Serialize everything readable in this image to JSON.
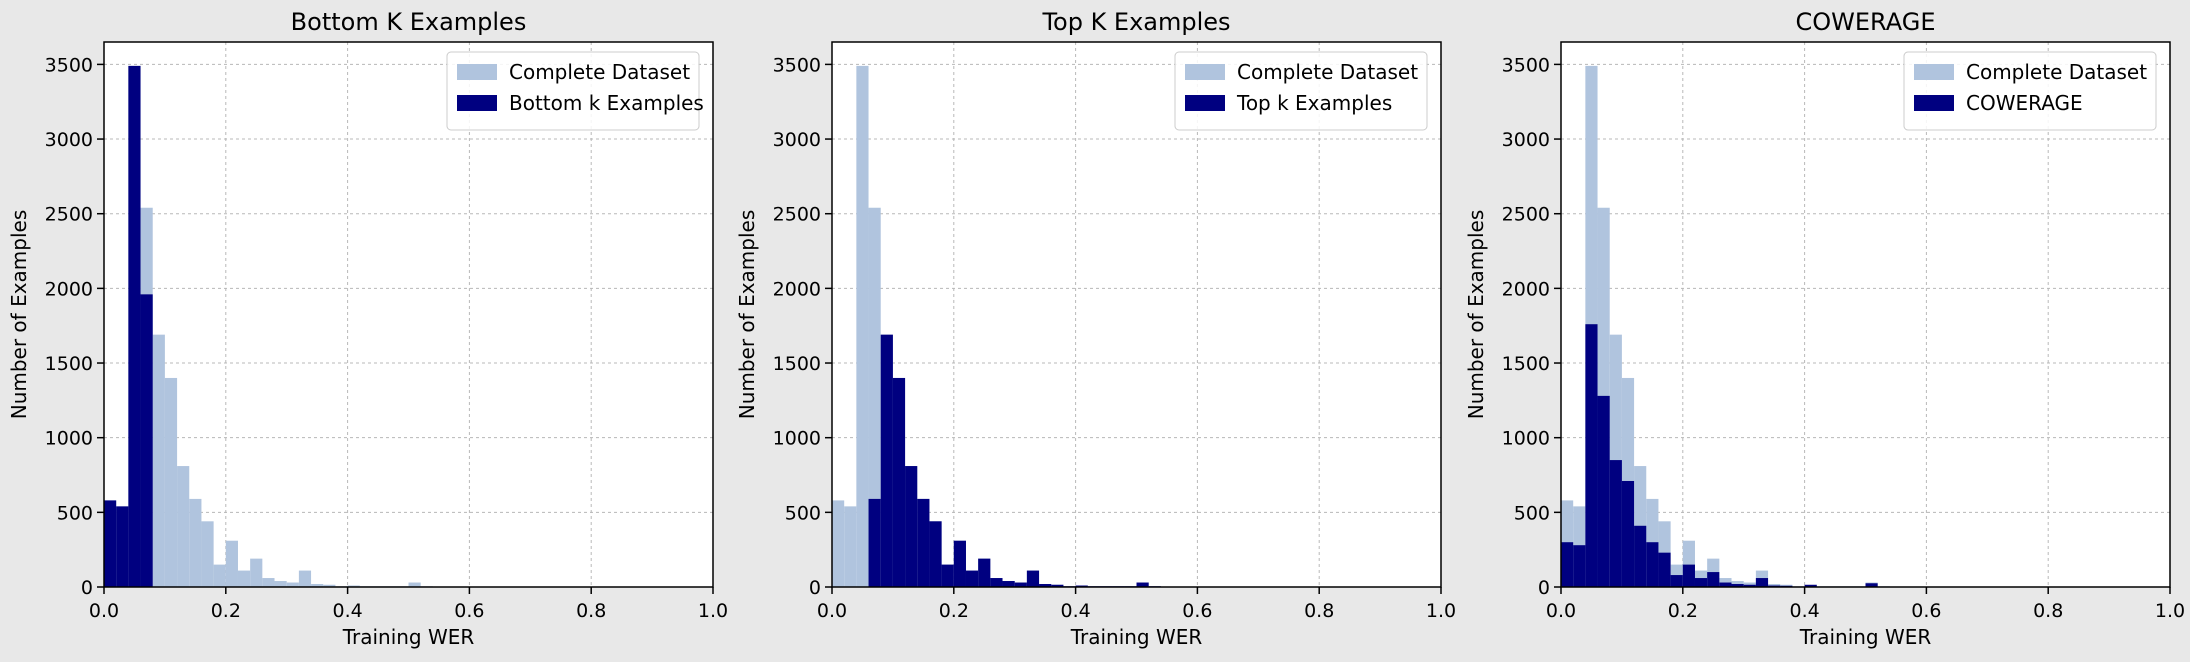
{
  "colors": {
    "complete": "#b0c4de",
    "subset": "#000080"
  },
  "chart_data": [
    {
      "type": "bar",
      "title": "Bottom K Examples",
      "xlabel": "Training WER",
      "ylabel": "Number of Examples",
      "xlim": [
        0,
        1
      ],
      "ylim": [
        0,
        3650
      ],
      "xticks": [
        "0.0",
        "0.2",
        "0.4",
        "0.6",
        "0.8",
        "1.0"
      ],
      "yticks": [
        "0",
        "500",
        "1000",
        "1500",
        "2000",
        "2500",
        "3000",
        "3500"
      ],
      "grid": true,
      "legend_position": "top-right",
      "bin_width": 0.02,
      "series": [
        {
          "name": "Complete Dataset",
          "values": [
            580,
            540,
            3490,
            2540,
            1690,
            1400,
            810,
            590,
            440,
            150,
            310,
            110,
            190,
            60,
            40,
            30,
            110,
            20,
            15,
            5,
            10,
            5,
            5,
            5,
            5,
            30,
            5
          ]
        },
        {
          "name": "Bottom k Examples",
          "values": [
            580,
            540,
            3490,
            1960
          ]
        }
      ]
    },
    {
      "type": "bar",
      "title": "Top K Examples",
      "xlabel": "Training WER",
      "ylabel": "Number of Examples",
      "xlim": [
        0,
        1
      ],
      "ylim": [
        0,
        3650
      ],
      "xticks": [
        "0.0",
        "0.2",
        "0.4",
        "0.6",
        "0.8",
        "1.0"
      ],
      "yticks": [
        "0",
        "500",
        "1000",
        "1500",
        "2000",
        "2500",
        "3000",
        "3500"
      ],
      "grid": true,
      "legend_position": "top-right",
      "bin_width": 0.02,
      "series": [
        {
          "name": "Complete Dataset",
          "values": [
            580,
            540,
            3490,
            2540,
            1690,
            1400,
            810,
            590,
            440,
            150,
            310,
            110,
            190,
            60,
            40,
            30,
            110,
            20,
            15,
            5,
            10,
            5,
            5,
            5,
            5,
            30,
            5
          ]
        },
        {
          "name": "Top k Examples",
          "values": [
            0,
            0,
            0,
            590,
            1690,
            1400,
            810,
            590,
            440,
            150,
            310,
            110,
            190,
            60,
            40,
            30,
            110,
            20,
            15,
            5,
            10,
            5,
            5,
            5,
            5,
            30,
            5
          ]
        }
      ]
    },
    {
      "type": "bar",
      "title": "COWERAGE",
      "xlabel": "Training WER",
      "ylabel": "Number of Examples",
      "xlim": [
        0,
        1
      ],
      "ylim": [
        0,
        3650
      ],
      "xticks": [
        "0.0",
        "0.2",
        "0.4",
        "0.6",
        "0.8",
        "1.0"
      ],
      "yticks": [
        "0",
        "500",
        "1000",
        "1500",
        "2000",
        "2500",
        "3000",
        "3500"
      ],
      "grid": true,
      "legend_position": "top-right",
      "bin_width": 0.02,
      "series": [
        {
          "name": "Complete Dataset",
          "values": [
            580,
            540,
            3490,
            2540,
            1690,
            1400,
            810,
            590,
            440,
            150,
            310,
            110,
            190,
            60,
            40,
            30,
            110,
            20,
            15,
            5,
            10,
            5,
            5,
            5,
            5,
            30,
            5
          ]
        },
        {
          "name": "COWERAGE",
          "values": [
            300,
            280,
            1760,
            1280,
            850,
            710,
            410,
            300,
            230,
            80,
            150,
            60,
            100,
            30,
            20,
            15,
            60,
            10,
            8,
            3,
            15,
            3,
            3,
            3,
            3,
            25,
            3
          ]
        }
      ]
    }
  ]
}
